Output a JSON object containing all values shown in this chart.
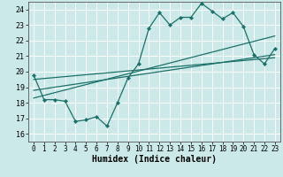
{
  "bg_color": "#cce9e9",
  "grid_color": "#ffffff",
  "line_color": "#1a7068",
  "xlabel": "Humidex (Indice chaleur)",
  "xlim": [
    -0.5,
    23.5
  ],
  "ylim": [
    15.5,
    24.5
  ],
  "yticks": [
    16,
    17,
    18,
    19,
    20,
    21,
    22,
    23,
    24
  ],
  "xticks": [
    0,
    1,
    2,
    3,
    4,
    5,
    6,
    7,
    8,
    9,
    10,
    11,
    12,
    13,
    14,
    15,
    16,
    17,
    18,
    19,
    20,
    21,
    22,
    23
  ],
  "zigzag_x": [
    0,
    1,
    2,
    3,
    4,
    5,
    6,
    7,
    8,
    9,
    10,
    11,
    12,
    13,
    14,
    15,
    16,
    17,
    18,
    19,
    20,
    21,
    22,
    23
  ],
  "zigzag_y": [
    19.8,
    18.2,
    18.2,
    18.1,
    16.8,
    16.9,
    17.1,
    16.5,
    18.0,
    19.6,
    20.5,
    22.8,
    23.8,
    23.0,
    23.5,
    23.5,
    24.4,
    23.9,
    23.4,
    23.8,
    22.9,
    21.1,
    20.5,
    21.5
  ],
  "trend1_x": [
    0,
    23
  ],
  "trend1_y": [
    18.3,
    22.3
  ],
  "trend2_x": [
    0,
    23
  ],
  "trend2_y": [
    18.8,
    21.1
  ],
  "trend3_x": [
    0,
    23
  ],
  "trend3_y": [
    19.5,
    20.9
  ]
}
